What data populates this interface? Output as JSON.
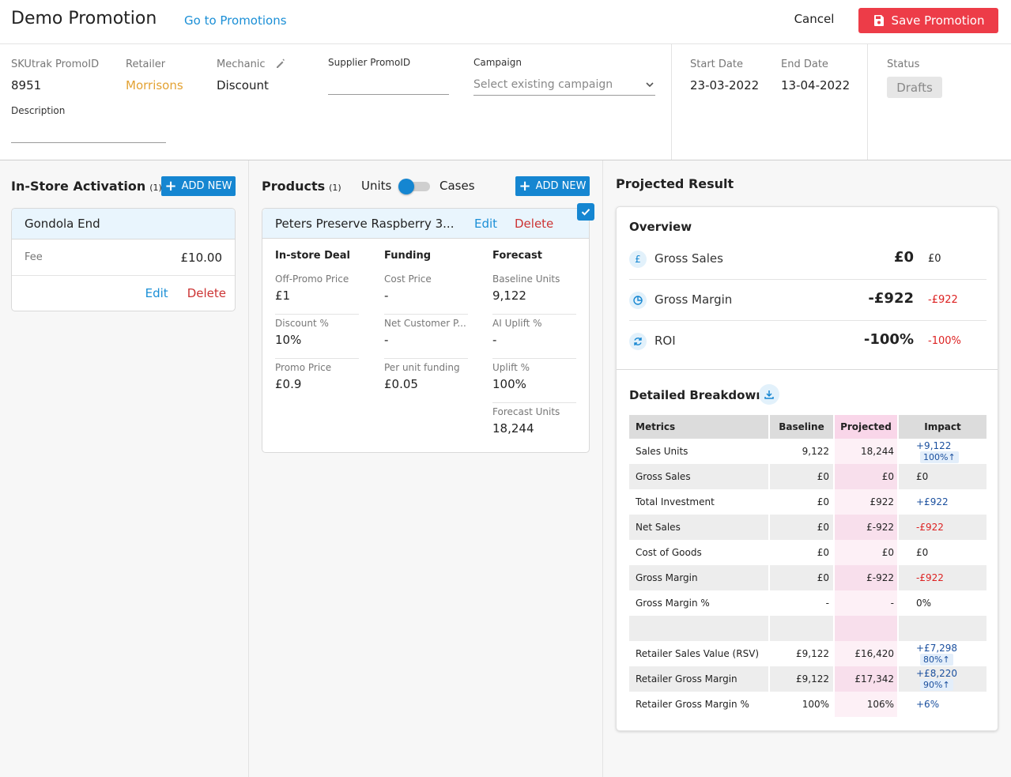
{
  "header": {
    "title": "Demo Promotion",
    "goto_link": "Go to Promotions",
    "cancel_label": "Cancel",
    "save_label": "Save Promotion"
  },
  "info": {
    "promo_id_label": "SKUtrak PromoID",
    "promo_id_value": "8951",
    "retailer_label": "Retailer",
    "retailer_value": "Morrisons",
    "mechanic_label": "Mechanic",
    "mechanic_value": "Discount",
    "supplier_label": "Supplier PromoID",
    "supplier_value": "",
    "campaign_label": "Campaign",
    "campaign_placeholder": "Select existing campaign",
    "description_label": "Description",
    "description_value": "",
    "start_label": "Start Date",
    "start_value": "23-03-2022",
    "end_label": "End Date",
    "end_value": "13-04-2022",
    "status_label": "Status",
    "status_value": "Drafts"
  },
  "activation": {
    "title": "In-Store Activation",
    "count": "(1)",
    "add_label": "ADD NEW",
    "card": {
      "name": "Gondola End",
      "fee_label": "Fee",
      "fee_value": "£10.00",
      "edit": "Edit",
      "delete": "Delete"
    }
  },
  "products": {
    "title": "Products",
    "count": "(1)",
    "units_label": "Units",
    "cases_label": "Cases",
    "add_label": "ADD NEW",
    "card": {
      "name": "Peters Preserve Raspberry 3...",
      "edit": "Edit",
      "delete": "Delete",
      "deal": {
        "title": "In-store Deal",
        "items": [
          {
            "label": "Off-Promo Price",
            "value": "£1"
          },
          {
            "label": "Discount %",
            "value": "10%"
          },
          {
            "label": "Promo Price",
            "value": "£0.9"
          }
        ]
      },
      "funding": {
        "title": "Funding",
        "items": [
          {
            "label": "Cost Price",
            "value": "-"
          },
          {
            "label": "Net Customer P...",
            "value": "-"
          },
          {
            "label": "Per unit funding",
            "value": "£0.05"
          }
        ]
      },
      "forecast": {
        "title": "Forecast",
        "items": [
          {
            "label": "Baseline Units",
            "value": "9,122"
          },
          {
            "label": "AI Uplift %",
            "value": "-"
          },
          {
            "label": "Uplift %",
            "value": "100%"
          },
          {
            "label": "Forecast Units",
            "value": "18,244"
          }
        ]
      }
    }
  },
  "projected": {
    "title": "Projected Result",
    "overview_title": "Overview",
    "overview": [
      {
        "label": "Gross Sales",
        "big": "£0",
        "small": "£0",
        "icon": "pound-icon"
      },
      {
        "label": "Gross Margin",
        "big": "-£922",
        "small": "-£922",
        "icon": "pie-chart-icon"
      },
      {
        "label": "ROI",
        "big": "-100%",
        "small": "-100%",
        "icon": "refresh-cycle-icon"
      }
    ],
    "breakdown_title": "Detailed Breakdown",
    "headers": [
      "Metrics",
      "Baseline",
      "Projected",
      "Impact"
    ],
    "rows": [
      [
        "Sales Units",
        "9,122",
        "18,244",
        "+9,122",
        "100%↑"
      ],
      [
        "Gross Sales",
        "£0",
        "£0",
        "£0",
        ""
      ],
      [
        "Total Investment",
        "£0",
        "£922",
        "+£922",
        ""
      ],
      [
        "Net Sales",
        "£0",
        "£-922",
        "-£922",
        ""
      ],
      [
        "Cost of Goods",
        "£0",
        "£0",
        "£0",
        ""
      ],
      [
        "Gross Margin",
        "£0",
        "£-922",
        "-£922",
        ""
      ],
      [
        "Gross Margin %",
        "-",
        "-",
        "0%",
        ""
      ],
      [
        "",
        "",
        "",
        "",
        ""
      ],
      [
        "Retailer Sales Value (RSV)",
        "£9,122",
        "£16,420",
        "+£7,298",
        "80%↑"
      ],
      [
        "Retailer Gross Margin",
        "£9,122",
        "£17,342",
        "+£8,220",
        "90%↑"
      ],
      [
        "Retailer Gross Margin %",
        "100%",
        "106%",
        "+6%",
        ""
      ]
    ]
  },
  "colors": {
    "accent": "#1586d1",
    "save_button": "#ed3c48",
    "retailer": "#e3a233",
    "negative": "#dd2222",
    "positive": "#1a4f9e"
  }
}
